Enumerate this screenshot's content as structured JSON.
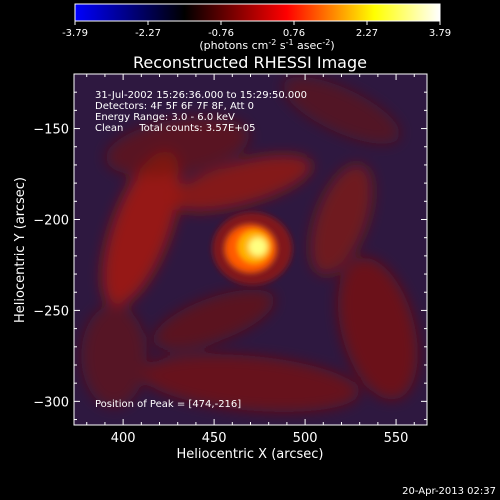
{
  "colorbar": {
    "ticks": [
      "-3.79",
      "-2.27",
      "-0.76",
      "0.76",
      "2.27",
      "3.79"
    ],
    "unit_parts": [
      "(photons cm",
      "-2",
      " s",
      "-1",
      " asec",
      "-2",
      ")"
    ],
    "colors": [
      "#0000ff",
      "#000000",
      "#ff0000",
      "#ffff00",
      "#ffffff"
    ]
  },
  "title": "Reconstructed RHESSI Image",
  "info": {
    "line1": "31-Jul-2002 15:26:36.000 to 15:29:50.000",
    "line2": "Detectors: 4F 5F 6F 7F 8F, Att 0",
    "line3": "Energy Range: 3.0 - 6.0 keV",
    "line4": "Clean     Total counts: 3.57E+05"
  },
  "peak_label": "Position of Peak = [474,-216]",
  "date_stamp": "20-Apr-2013 02:37",
  "chart_data": {
    "type": "heatmap",
    "title": "Reconstructed RHESSI Image",
    "xlabel": "Heliocentric X (arcsec)",
    "ylabel": "Heliocentric Y (arcsec)",
    "xlim": [
      373,
      567
    ],
    "ylim": [
      -313,
      -120
    ],
    "x_ticks": [
      400,
      450,
      500,
      550
    ],
    "y_ticks": [
      -150,
      -200,
      -250,
      -300
    ],
    "colorbar_range": [
      -3.79,
      3.79
    ],
    "peak": {
      "x": 474,
      "y": -216
    },
    "background_color": "#2e1840",
    "features": [
      {
        "cx": 471,
        "cy": -216,
        "rx": 22,
        "ry": 20,
        "rot": 0,
        "color": "#8a1414",
        "opacity": 0.9
      },
      {
        "cx": 470,
        "cy": -216,
        "rx": 14,
        "ry": 13,
        "rot": 0,
        "color": "#ff5a00",
        "opacity": 1.0
      },
      {
        "cx": 472,
        "cy": -215,
        "rx": 9,
        "ry": 9,
        "rot": 0,
        "color": "#ffb400",
        "opacity": 1.0
      },
      {
        "cx": 474,
        "cy": -215,
        "rx": 5,
        "ry": 5,
        "rot": 0,
        "color": "#ffff80",
        "opacity": 1.0
      },
      {
        "cx": 410,
        "cy": -205,
        "rx": 16,
        "ry": 45,
        "rot": 20,
        "color": "#a81a10",
        "opacity": 0.85
      },
      {
        "cx": 465,
        "cy": -180,
        "rx": 40,
        "ry": 12,
        "rot": -15,
        "color": "#9a1810",
        "opacity": 0.8
      },
      {
        "cx": 540,
        "cy": -260,
        "rx": 20,
        "ry": 40,
        "rot": -15,
        "color": "#7a1410",
        "opacity": 0.8
      },
      {
        "cx": 470,
        "cy": -290,
        "rx": 60,
        "ry": 15,
        "rot": 5,
        "color": "#7a1010",
        "opacity": 0.75
      },
      {
        "cx": 520,
        "cy": -200,
        "rx": 14,
        "ry": 32,
        "rot": 20,
        "color": "#8a1812",
        "opacity": 0.7
      },
      {
        "cx": 450,
        "cy": -255,
        "rx": 35,
        "ry": 12,
        "rot": -20,
        "color": "#6e1010",
        "opacity": 0.7
      },
      {
        "cx": 430,
        "cy": -160,
        "rx": 40,
        "ry": 15,
        "rot": -10,
        "color": "#701210",
        "opacity": 0.65
      },
      {
        "cx": 520,
        "cy": -140,
        "rx": 35,
        "ry": 12,
        "rot": 25,
        "color": "#6a1010",
        "opacity": 0.6
      },
      {
        "cx": 395,
        "cy": -275,
        "rx": 18,
        "ry": 28,
        "rot": 0,
        "color": "#701212",
        "opacity": 0.6
      }
    ]
  }
}
